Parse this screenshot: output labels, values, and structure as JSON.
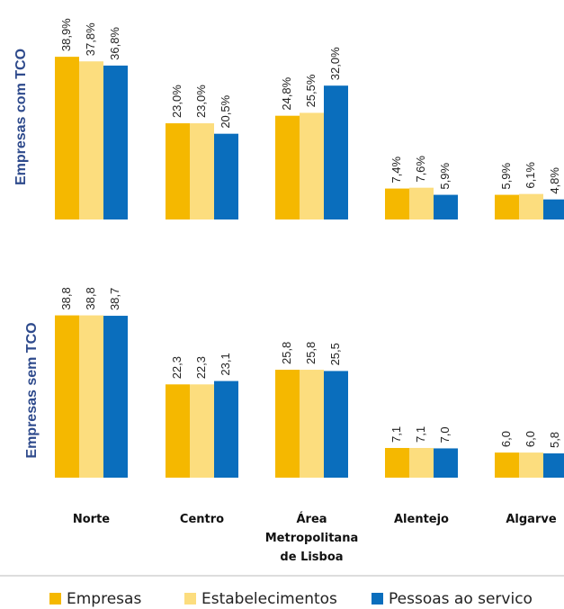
{
  "chart_data": [
    {
      "type": "bar",
      "ylabel": "Empresas com TCO",
      "categories": [
        "Norte",
        "Centro",
        "Área Metropolitana de Lisboa",
        "Alentejo",
        "Algarve"
      ],
      "unit": "%",
      "series": [
        {
          "name": "Empresas",
          "color": "#F5B800",
          "values": [
            38.9,
            23.0,
            24.8,
            7.4,
            5.9
          ],
          "labels": [
            "38,9%",
            "23,0%",
            "24,8%",
            "7,4%",
            "5,9%"
          ]
        },
        {
          "name": "Estabelecimentos",
          "color": "#FCDD7E",
          "values": [
            37.8,
            23.0,
            25.5,
            7.6,
            6.1
          ],
          "labels": [
            "37,8%",
            "23,0%",
            "25,5%",
            "7,6%",
            "6,1%"
          ]
        },
        {
          "name": "Pessoas ao servico",
          "color": "#0A6EBD",
          "values": [
            36.8,
            20.5,
            32.0,
            5.9,
            4.8
          ],
          "labels": [
            "36,8%",
            "20,5%",
            "32,0%",
            "5,9%",
            "4,8%"
          ]
        }
      ]
    },
    {
      "type": "bar",
      "ylabel": "Empresas sem TCO",
      "categories": [
        "Norte",
        "Centro",
        "Área Metropolitana de Lisboa",
        "Alentejo",
        "Algarve"
      ],
      "series": [
        {
          "name": "Empresas",
          "color": "#F5B800",
          "values": [
            38.8,
            22.3,
            25.8,
            7.1,
            6.0
          ],
          "labels": [
            "38,8",
            "22,3",
            "25,8",
            "7,1",
            "6,0"
          ]
        },
        {
          "name": "Estabelecimentos",
          "color": "#FCDD7E",
          "values": [
            38.8,
            22.3,
            25.8,
            7.1,
            6.0
          ],
          "labels": [
            "38,8",
            "22,3",
            "25,8",
            "7,1",
            "6,0"
          ]
        },
        {
          "name": "Pessoas ao servico",
          "color": "#0A6EBD",
          "values": [
            38.7,
            23.1,
            25.5,
            7.0,
            5.8
          ],
          "labels": [
            "38,7",
            "23,1",
            "25,5",
            "7,0",
            "5,8"
          ]
        }
      ]
    }
  ],
  "category_labels": [
    [
      "Norte"
    ],
    [
      "Centro"
    ],
    [
      "Área",
      "Metropolitana",
      "de Lisboa"
    ],
    [
      "Alentejo"
    ],
    [
      "Algarve"
    ]
  ],
  "legend": {
    "position": "bottom",
    "items": [
      {
        "label": "Empresas",
        "color": "#F5B800"
      },
      {
        "label": "Estabelecimentos",
        "color": "#FCDD7E"
      },
      {
        "label": "Pessoas ao servico",
        "color": "#0A6EBD"
      }
    ]
  }
}
